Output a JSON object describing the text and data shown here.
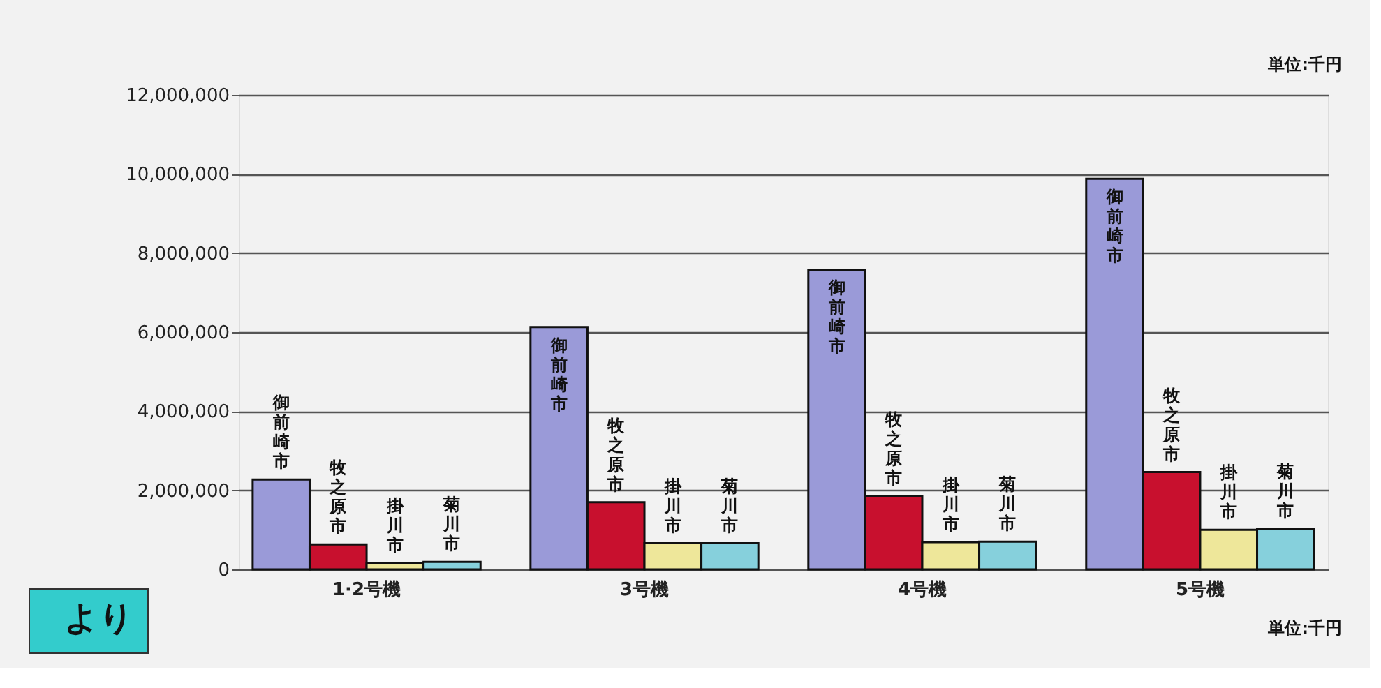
{
  "chart_data": {
    "type": "bar",
    "categories": [
      "1·2号機",
      "3号機",
      "4号機",
      "5号機"
    ],
    "series": [
      {
        "name": "御前崎市",
        "color": "#9a9ad8",
        "values": [
          2270000,
          6130000,
          7580000,
          9880000
        ]
      },
      {
        "name": "牧之原市",
        "color": "#c8102e",
        "values": [
          630000,
          1700000,
          1860000,
          2460000
        ]
      },
      {
        "name": "掛川市",
        "color": "#eee79a",
        "values": [
          160000,
          660000,
          690000,
          1000000
        ]
      },
      {
        "name": "菊川市",
        "color": "#86d0dc",
        "values": [
          190000,
          660000,
          700000,
          1020000
        ]
      }
    ],
    "ylim": [
      0,
      12000000
    ],
    "yticks": [
      0,
      {
        "value": 2000000,
        "label": "2,000,000"
      },
      {
        "value": 4000000,
        "label": "4,000,000"
      },
      {
        "value": 6000000,
        "label": "6,000,000"
      },
      {
        "value": 8000000,
        "label": "8,000,000"
      },
      {
        "value": 10000000,
        "label": "10,000,000"
      },
      {
        "value": 12000000,
        "label": "12,000,000"
      }
    ],
    "grid": "y",
    "legend": false,
    "annotations": [
      "単位:千円",
      "単位:千円",
      "より"
    ]
  }
}
